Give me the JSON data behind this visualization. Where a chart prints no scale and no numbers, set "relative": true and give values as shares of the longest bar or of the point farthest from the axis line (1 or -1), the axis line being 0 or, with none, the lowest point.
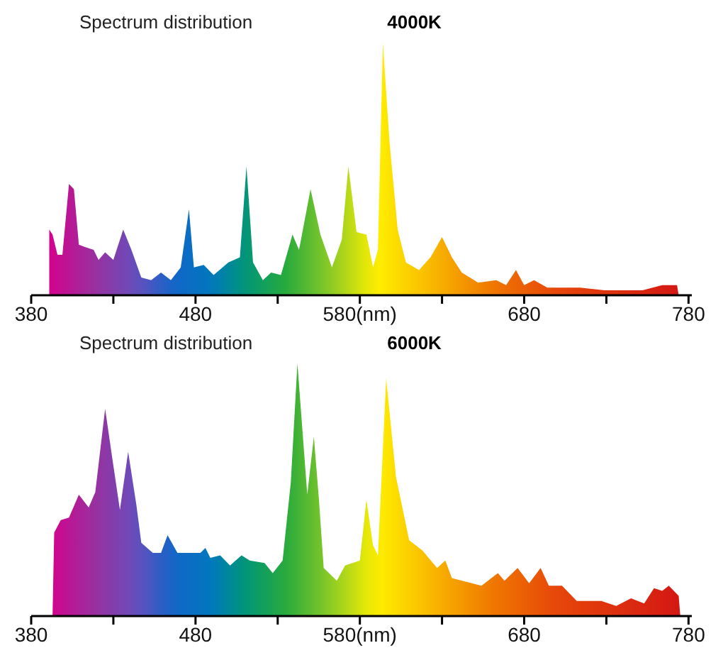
{
  "chart_data": [
    {
      "type": "area",
      "title": "Spectrum distribution",
      "subtitle": "4000K",
      "relative": true,
      "xlim": [
        380,
        782
      ],
      "xticks": [
        380,
        {
          "value": 430,
          "label": null
        },
        480,
        {
          "value": 530,
          "label": null
        },
        {
          "value": 580,
          "label": "580(nm)"
        },
        {
          "value": 630,
          "label": null
        },
        680,
        {
          "value": 730,
          "label": null
        },
        780
      ],
      "x": [
        391,
        391,
        393,
        396,
        399,
        403,
        406,
        409,
        413,
        418,
        421,
        425,
        430,
        436,
        441,
        447,
        453,
        459,
        465,
        471,
        476,
        479,
        485,
        491,
        500,
        507,
        511,
        515,
        521,
        526,
        532,
        539,
        543,
        550,
        556,
        563,
        569,
        573,
        578,
        584,
        588,
        591,
        594,
        598,
        603,
        608,
        616,
        623,
        630,
        636,
        642,
        652,
        663,
        669,
        675,
        680,
        686,
        694,
        714,
        729,
        752,
        764,
        773,
        774
      ],
      "values": [
        0,
        0.26,
        0.24,
        0.16,
        0.16,
        0.44,
        0.42,
        0.2,
        0.19,
        0.18,
        0.14,
        0.17,
        0.14,
        0.26,
        0.18,
        0.07,
        0.06,
        0.09,
        0.06,
        0.11,
        0.34,
        0.11,
        0.12,
        0.08,
        0.13,
        0.15,
        0.51,
        0.13,
        0.06,
        0.09,
        0.08,
        0.24,
        0.18,
        0.42,
        0.24,
        0.11,
        0.22,
        0.51,
        0.25,
        0.24,
        0.11,
        0.18,
        1,
        0.61,
        0.26,
        0.13,
        0.1,
        0.15,
        0.23,
        0.15,
        0.09,
        0.05,
        0.06,
        0.04,
        0.1,
        0.04,
        0.06,
        0.03,
        0.03,
        0.02,
        0.02,
        0.04,
        0.04,
        0
      ]
    },
    {
      "type": "area",
      "title": "Spectrum distribution",
      "subtitle": "6000K",
      "relative": true,
      "xlim": [
        380,
        782
      ],
      "xticks": [
        380,
        {
          "value": 430,
          "label": null
        },
        480,
        {
          "value": 530,
          "label": null
        },
        {
          "value": 580,
          "label": "580(nm)"
        },
        {
          "value": 630,
          "label": null
        },
        680,
        {
          "value": 730,
          "label": null
        },
        780
      ],
      "x": [
        393,
        394,
        398,
        403,
        409,
        415,
        419,
        425,
        429,
        434,
        439,
        444,
        447,
        454,
        459,
        463,
        469,
        483,
        486,
        489,
        495,
        501,
        508,
        513,
        522,
        527,
        533,
        538,
        542,
        545,
        548,
        552,
        555,
        558,
        566,
        571,
        580,
        584,
        588,
        591,
        596,
        602,
        610,
        618,
        627,
        632,
        636,
        654,
        664,
        668,
        676,
        683,
        690,
        695,
        703,
        712,
        727,
        736,
        745,
        753,
        759,
        764,
        768,
        774,
        775
      ],
      "values": [
        0,
        0.33,
        0.38,
        0.39,
        0.48,
        0.43,
        0.49,
        0.82,
        0.64,
        0.42,
        0.65,
        0.44,
        0.29,
        0.25,
        0.25,
        0.32,
        0.25,
        0.25,
        0.27,
        0.23,
        0.24,
        0.2,
        0.24,
        0.22,
        0.21,
        0.17,
        0.22,
        0.53,
        1,
        0.74,
        0.48,
        0.71,
        0.47,
        0.19,
        0.14,
        0.2,
        0.22,
        0.46,
        0.28,
        0.24,
        0.94,
        0.55,
        0.3,
        0.26,
        0.19,
        0.22,
        0.15,
        0.12,
        0.17,
        0.14,
        0.19,
        0.13,
        0.19,
        0.12,
        0.12,
        0.06,
        0.06,
        0.04,
        0.07,
        0.05,
        0.11,
        0.1,
        0.12,
        0.08,
        0
      ]
    }
  ]
}
